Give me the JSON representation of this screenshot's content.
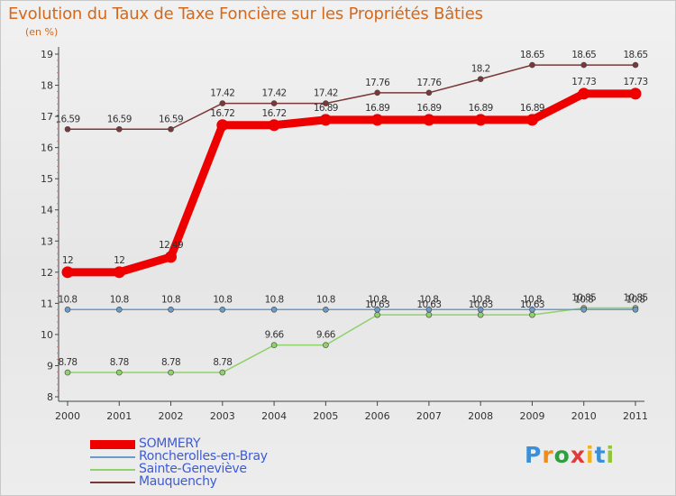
{
  "title": "Evolution du Taux de Taxe Foncière sur les Propriétés Bâties",
  "unit": "(en %)",
  "chart_data": {
    "type": "line",
    "title": "Evolution du Taux de Taxe Foncière sur les Propriétés Bâties",
    "ylabel": "(en %)",
    "xlabel": "",
    "ylim": [
      8,
      19
    ],
    "yticks": [
      "8",
      "9",
      "10",
      "11",
      "12",
      "13",
      "14",
      "15",
      "16",
      "17",
      "18",
      "19"
    ],
    "categories": [
      "2000",
      "2001",
      "2002",
      "2003",
      "2004",
      "2005",
      "2006",
      "2007",
      "2008",
      "2009",
      "2010",
      "2011"
    ],
    "grid": false,
    "legend": "bottom-left",
    "series": [
      {
        "name": "Mauquenchy",
        "color": "#7b3838",
        "values": [
          16.59,
          16.59,
          16.59,
          17.42,
          17.42,
          17.42,
          17.76,
          17.76,
          18.2,
          18.65,
          18.65,
          18.65
        ],
        "labels": [
          "16.59",
          "16.59",
          "16.59",
          "17.42",
          "17.42",
          "17.42",
          "17.76",
          "17.76",
          "18.2",
          "18.65",
          "18.65",
          "18.65"
        ]
      },
      {
        "name": "Sainte-Geneviève",
        "color": "#8fd16a",
        "values": [
          8.78,
          8.78,
          8.78,
          8.78,
          9.66,
          9.66,
          10.63,
          10.63,
          10.63,
          10.63,
          10.85,
          10.85
        ],
        "labels": [
          "8.78",
          "8.78",
          "8.78",
          "8.78",
          "9.66",
          "9.66",
          "10.63",
          "10.63",
          "10.63",
          "10.63",
          "10.85",
          "10.85"
        ]
      },
      {
        "name": "Roncherolles-en-Bray",
        "color": "#6b9bc8",
        "values": [
          10.8,
          10.8,
          10.8,
          10.8,
          10.8,
          10.8,
          10.8,
          10.8,
          10.8,
          10.8,
          10.8,
          10.8
        ],
        "labels": [
          "10.8",
          "10.8",
          "10.8",
          "10.8",
          "10.8",
          "10.8",
          "10.8",
          "10.8",
          "10.8",
          "10.8",
          "10.8",
          "10.8"
        ]
      },
      {
        "name": "SOMMERY",
        "color": "#ee0000",
        "values": [
          12,
          12,
          12.49,
          16.72,
          16.72,
          16.89,
          16.89,
          16.89,
          16.89,
          16.89,
          17.73,
          17.73
        ],
        "labels": [
          "12",
          "12",
          "12.49",
          "16.72",
          "16.72",
          "16.89",
          "16.89",
          "16.89",
          "16.89",
          "16.89",
          "17.73",
          "17.73"
        ]
      }
    ]
  },
  "legend": {
    "items": [
      {
        "label": "SOMMERY",
        "color": "#ee0000"
      },
      {
        "label": "Roncherolles-en-Bray",
        "color": "#6b9bc8"
      },
      {
        "label": "Sainte-Geneviève",
        "color": "#8fd16a"
      },
      {
        "label": "Mauquenchy",
        "color": "#7b3838"
      }
    ]
  },
  "logo": {
    "letters": [
      "P",
      "r",
      "o",
      "x",
      "i",
      "t",
      "i"
    ],
    "colors": [
      "#3a8fd6",
      "#f08c1a",
      "#2e9e3e",
      "#e03a3a",
      "#f2b21a",
      "#3a8fd6",
      "#8fc63a"
    ]
  }
}
